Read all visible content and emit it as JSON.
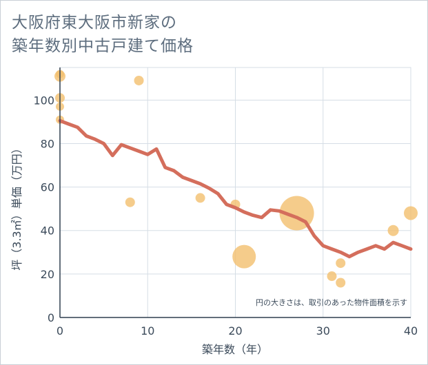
{
  "title_line1": "大阪府東大阪市新家の",
  "title_line2": "築年数別中古戸建て価格",
  "chart_data": {
    "type": "scatter",
    "title": "大阪府東大阪市新家の築年数別中古戸建て価格",
    "xlabel": "築年数（年）",
    "ylabel": "坪（3.3㎡）単価（万円）",
    "xlim": [
      0,
      40
    ],
    "ylim": [
      0,
      115
    ],
    "xticks": [
      0,
      10,
      20,
      30,
      40
    ],
    "yticks": [
      0,
      20,
      40,
      60,
      80,
      100
    ],
    "grid": true,
    "note": "円の大きさは、取引のあった物件面積を示す",
    "colors": {
      "bubble": "#f3bf6e",
      "line": "#d46e5c",
      "grid": "#d5dde5",
      "text": "#3b4a5a"
    },
    "scatter": [
      {
        "x": 0,
        "y": 111,
        "size": 8
      },
      {
        "x": 0,
        "y": 112,
        "size": 6
      },
      {
        "x": 0,
        "y": 101,
        "size": 7
      },
      {
        "x": 0,
        "y": 97,
        "size": 6
      },
      {
        "x": 0,
        "y": 91,
        "size": 6
      },
      {
        "x": 8,
        "y": 53,
        "size": 7
      },
      {
        "x": 9,
        "y": 109,
        "size": 7
      },
      {
        "x": 16,
        "y": 55,
        "size": 7
      },
      {
        "x": 20,
        "y": 52,
        "size": 7
      },
      {
        "x": 21,
        "y": 28,
        "size": 17
      },
      {
        "x": 27,
        "y": 48,
        "size": 25
      },
      {
        "x": 31,
        "y": 19,
        "size": 7
      },
      {
        "x": 32,
        "y": 25,
        "size": 7
      },
      {
        "x": 32,
        "y": 16,
        "size": 7
      },
      {
        "x": 38,
        "y": 40,
        "size": 8
      },
      {
        "x": 40,
        "y": 48,
        "size": 10
      }
    ],
    "trend": {
      "x": [
        0,
        1,
        2,
        3,
        4,
        5,
        6,
        7,
        8,
        9,
        10,
        11,
        12,
        13,
        14,
        15,
        16,
        17,
        18,
        19,
        20,
        21,
        22,
        23,
        24,
        25,
        26,
        27,
        28,
        29,
        30,
        31,
        32,
        33,
        34,
        35,
        36,
        37,
        38,
        39,
        40
      ],
      "y": [
        90.5,
        89,
        87.5,
        83.5,
        82,
        80,
        74.5,
        79.5,
        78,
        76.5,
        75,
        77.5,
        69,
        67.5,
        64.5,
        63,
        61.5,
        59.5,
        57,
        52,
        50.5,
        48.5,
        47,
        46,
        49.5,
        49,
        47.5,
        46,
        44,
        37.5,
        33,
        31.5,
        30,
        28,
        30,
        31.5,
        33,
        31.5,
        34.5,
        33,
        31.5
      ]
    }
  }
}
